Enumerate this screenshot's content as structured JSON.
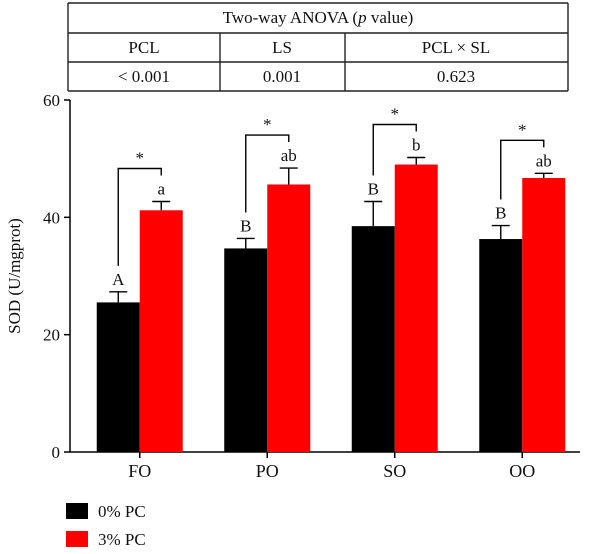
{
  "anova_table": {
    "title_main": "Two-way ANOVA (",
    "title_italic": "p",
    "title_end": " value)",
    "headers": [
      "PCL",
      "LS",
      "PCL × SL"
    ],
    "values": [
      "< 0.001",
      "0.001",
      "0.623"
    ]
  },
  "chart_data": {
    "type": "bar",
    "categories": [
      "FO",
      "PO",
      "SO",
      "OO"
    ],
    "ylabel": "SOD (U/mgprot)",
    "xlabel": "",
    "ylim": [
      0,
      60
    ],
    "yticks": [
      0,
      20,
      40,
      60
    ],
    "series": [
      {
        "name": "0% PC",
        "color": "#000000",
        "values": [
          25.5,
          34.7,
          38.5,
          36.3
        ],
        "errors": [
          1.8,
          1.7,
          4.2,
          2.3
        ],
        "letters": [
          "A",
          "B",
          "B",
          "B"
        ]
      },
      {
        "name": "3% PC",
        "color": "#ff0000",
        "values": [
          41.2,
          45.6,
          49.0,
          46.7
        ],
        "errors": [
          1.5,
          2.8,
          1.2,
          0.8
        ],
        "letters": [
          "a",
          "ab",
          "b",
          "ab"
        ]
      }
    ],
    "comparisons": [
      "*",
      "*",
      "*",
      "*"
    ],
    "legend_position": "bottom-left"
  }
}
